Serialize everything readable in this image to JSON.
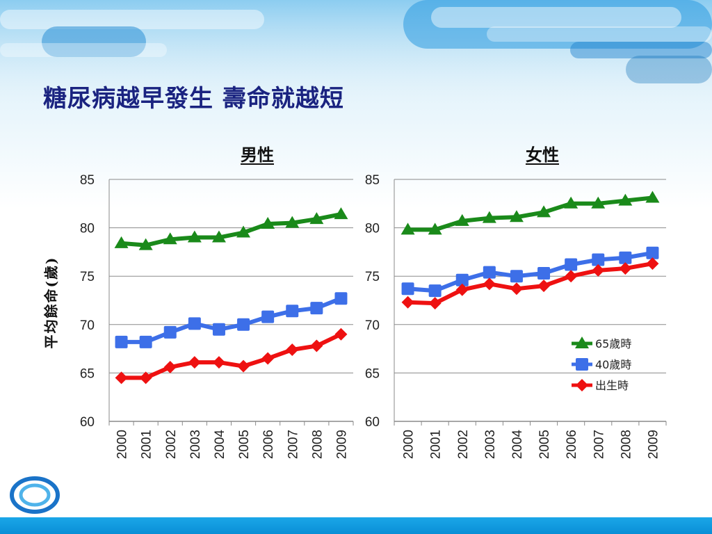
{
  "slide": {
    "title": "糖尿病越早發生  壽命就越短",
    "y_axis_title": "平均餘命(歲)"
  },
  "colors": {
    "title": "#1a2380",
    "series_65": "#1a8a1a",
    "series_40": "#3d6fe8",
    "series_birth": "#ee1111",
    "footer": "#0a8fd6"
  },
  "chart_data": [
    {
      "type": "line",
      "title": "男性",
      "categories": [
        "2000",
        "2001",
        "2002",
        "2003",
        "2004",
        "2005",
        "2006",
        "2007",
        "2008",
        "2009"
      ],
      "ylim": [
        60,
        85
      ],
      "yticks": [
        60,
        65,
        70,
        75,
        80,
        85
      ],
      "grid": true,
      "legend": "none",
      "series": [
        {
          "name": "65歲時",
          "marker": "triangle",
          "color": "#1a8a1a",
          "values": [
            78.4,
            78.2,
            78.8,
            79.0,
            79.0,
            79.5,
            80.4,
            80.5,
            80.9,
            81.4
          ]
        },
        {
          "name": "40歲時",
          "marker": "square",
          "color": "#3d6fe8",
          "values": [
            68.2,
            68.2,
            69.2,
            70.1,
            69.5,
            70.0,
            70.8,
            71.4,
            71.7,
            72.7
          ]
        },
        {
          "name": "出生時",
          "marker": "diamond",
          "color": "#ee1111",
          "values": [
            64.5,
            64.5,
            65.6,
            66.1,
            66.1,
            65.7,
            66.5,
            67.4,
            67.8,
            69.0
          ]
        }
      ]
    },
    {
      "type": "line",
      "title": "女性",
      "categories": [
        "2000",
        "2001",
        "2002",
        "2003",
        "2004",
        "2005",
        "2006",
        "2007",
        "2008",
        "2009"
      ],
      "ylim": [
        60,
        85
      ],
      "yticks": [
        60,
        65,
        70,
        75,
        80,
        85
      ],
      "grid": true,
      "legend": "right",
      "series": [
        {
          "name": "65歲時",
          "marker": "triangle",
          "color": "#1a8a1a",
          "values": [
            79.8,
            79.8,
            80.7,
            81.0,
            81.1,
            81.6,
            82.5,
            82.5,
            82.8,
            83.1
          ]
        },
        {
          "name": "40歲時",
          "marker": "square",
          "color": "#3d6fe8",
          "values": [
            73.7,
            73.5,
            74.6,
            75.4,
            75.0,
            75.3,
            76.2,
            76.7,
            76.9,
            77.4
          ]
        },
        {
          "name": "出生時",
          "marker": "diamond",
          "color": "#ee1111",
          "values": [
            72.3,
            72.2,
            73.6,
            74.2,
            73.7,
            74.0,
            75.0,
            75.6,
            75.8,
            76.3
          ]
        }
      ]
    }
  ]
}
